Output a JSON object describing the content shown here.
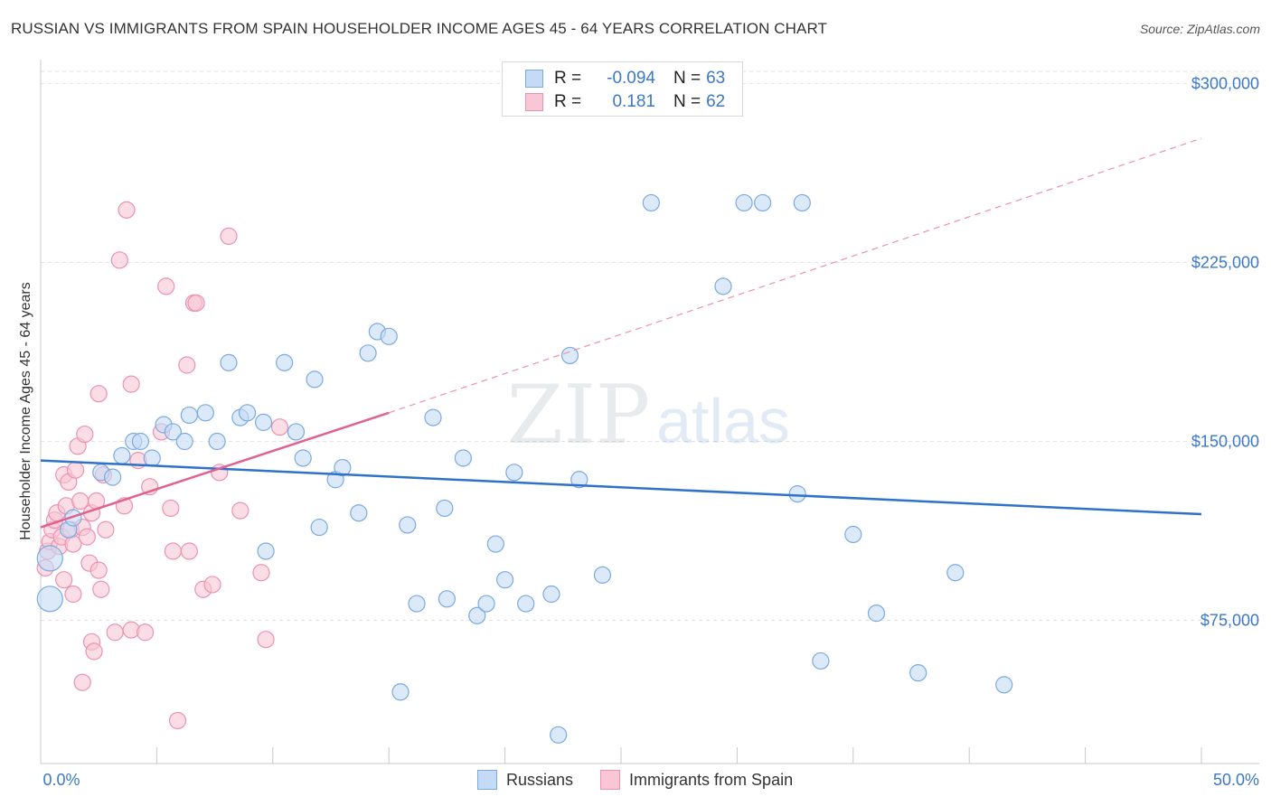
{
  "chart_data": {
    "type": "scatter",
    "title": "RUSSIAN VS IMMIGRANTS FROM SPAIN HOUSEHOLDER INCOME AGES 45 - 64 YEARS CORRELATION CHART",
    "source": "Source: ZipAtlas.com",
    "ylabel": "Householder Income Ages 45 - 64 years",
    "xlabel": "",
    "xlim": [
      0,
      50
    ],
    "ylim": [
      15000,
      310000
    ],
    "x_tick_labels": {
      "left": "0.0%",
      "right": "50.0%"
    },
    "y_ticks": [
      {
        "value": 75000,
        "label": "$75,000"
      },
      {
        "value": 150000,
        "label": "$150,000"
      },
      {
        "value": 225000,
        "label": "$225,000"
      },
      {
        "value": 300000,
        "label": "$300,000"
      }
    ],
    "watermark": {
      "zip": "ZIP",
      "atlas": "atlas"
    },
    "legend": {
      "r_label": "R =",
      "n_label": "N =",
      "entries": [
        {
          "name": "Russians",
          "r": "-0.094",
          "n": "63"
        },
        {
          "name": "Immigrants from Spain",
          "r": "0.181",
          "n": "62"
        }
      ]
    },
    "series": [
      {
        "name": "Russians",
        "color": "#7aaae0",
        "fill": "#c5daf5",
        "trend": {
          "x0": 0,
          "y0": 142000,
          "x1": 50,
          "y1": 119500,
          "dashed_to": null
        },
        "points": [
          [
            0.4,
            101000
          ],
          [
            0.4,
            84000
          ],
          [
            1.2,
            113000
          ],
          [
            1.4,
            118000
          ],
          [
            2.6,
            137000
          ],
          [
            3.1,
            135000
          ],
          [
            3.5,
            144000
          ],
          [
            4.0,
            150000
          ],
          [
            4.3,
            150000
          ],
          [
            4.8,
            143000
          ],
          [
            5.3,
            157000
          ],
          [
            5.7,
            154000
          ],
          [
            6.2,
            150000
          ],
          [
            6.4,
            161000
          ],
          [
            7.1,
            162000
          ],
          [
            7.6,
            150000
          ],
          [
            8.1,
            183000
          ],
          [
            8.6,
            160000
          ],
          [
            8.9,
            162000
          ],
          [
            9.6,
            158000
          ],
          [
            9.7,
            104000
          ],
          [
            10.5,
            183000
          ],
          [
            11.0,
            154000
          ],
          [
            11.3,
            143000
          ],
          [
            11.8,
            176000
          ],
          [
            12.0,
            114000
          ],
          [
            12.7,
            134000
          ],
          [
            13.0,
            139000
          ],
          [
            13.7,
            120000
          ],
          [
            14.1,
            187000
          ],
          [
            14.5,
            196000
          ],
          [
            15.0,
            194000
          ],
          [
            15.5,
            45000
          ],
          [
            15.8,
            115000
          ],
          [
            16.2,
            82000
          ],
          [
            16.9,
            160000
          ],
          [
            17.4,
            122000
          ],
          [
            17.5,
            84000
          ],
          [
            18.2,
            143000
          ],
          [
            18.8,
            77000
          ],
          [
            19.2,
            82000
          ],
          [
            19.6,
            107000
          ],
          [
            20.0,
            92000
          ],
          [
            20.4,
            137000
          ],
          [
            20.9,
            82000
          ],
          [
            22.0,
            86000
          ],
          [
            22.3,
            27000
          ],
          [
            22.8,
            186000
          ],
          [
            23.2,
            134000
          ],
          [
            24.2,
            94000
          ],
          [
            26.3,
            250000
          ],
          [
            29.4,
            215000
          ],
          [
            30.3,
            250000
          ],
          [
            31.1,
            250000
          ],
          [
            32.6,
            128000
          ],
          [
            32.8,
            250000
          ],
          [
            33.6,
            58000
          ],
          [
            35.0,
            111000
          ],
          [
            36.0,
            78000
          ],
          [
            37.8,
            53000
          ],
          [
            39.4,
            95000
          ],
          [
            41.5,
            48000
          ]
        ]
      },
      {
        "name": "Immigrants from Spain",
        "color": "#eb92b0",
        "fill": "#f9c6d6",
        "trend": {
          "x0": 0,
          "y0": 114000,
          "x1": 15,
          "y1": 162000,
          "dashed_to": {
            "x": 50,
            "y": 277000
          }
        },
        "points": [
          [
            0.2,
            97000
          ],
          [
            0.3,
            104000
          ],
          [
            0.4,
            108000
          ],
          [
            0.5,
            113000
          ],
          [
            0.6,
            117000
          ],
          [
            0.7,
            120000
          ],
          [
            0.8,
            106000
          ],
          [
            0.9,
            110000
          ],
          [
            1.0,
            92000
          ],
          [
            1.0,
            136000
          ],
          [
            1.1,
            123000
          ],
          [
            1.2,
            133000
          ],
          [
            1.3,
            113000
          ],
          [
            1.4,
            107000
          ],
          [
            1.4,
            86000
          ],
          [
            1.5,
            138000
          ],
          [
            1.6,
            148000
          ],
          [
            1.7,
            125000
          ],
          [
            1.8,
            114000
          ],
          [
            1.8,
            49000
          ],
          [
            1.9,
            153000
          ],
          [
            2.0,
            110000
          ],
          [
            2.1,
            99000
          ],
          [
            2.2,
            120000
          ],
          [
            2.2,
            66000
          ],
          [
            2.3,
            62000
          ],
          [
            2.4,
            125000
          ],
          [
            2.5,
            96000
          ],
          [
            2.5,
            170000
          ],
          [
            2.6,
            88000
          ],
          [
            2.7,
            136000
          ],
          [
            2.8,
            113000
          ],
          [
            3.2,
            70000
          ],
          [
            3.4,
            226000
          ],
          [
            3.6,
            123000
          ],
          [
            3.7,
            247000
          ],
          [
            3.9,
            174000
          ],
          [
            3.9,
            71000
          ],
          [
            4.2,
            142000
          ],
          [
            4.5,
            70000
          ],
          [
            4.7,
            131000
          ],
          [
            5.2,
            154000
          ],
          [
            5.4,
            215000
          ],
          [
            5.6,
            122000
          ],
          [
            5.7,
            104000
          ],
          [
            5.9,
            33000
          ],
          [
            6.3,
            182000
          ],
          [
            6.4,
            104000
          ],
          [
            6.6,
            208000
          ],
          [
            6.7,
            208000
          ],
          [
            7.0,
            88000
          ],
          [
            7.4,
            90000
          ],
          [
            7.7,
            137000
          ],
          [
            8.1,
            236000
          ],
          [
            8.6,
            121000
          ],
          [
            9.5,
            95000
          ],
          [
            9.7,
            67000
          ],
          [
            10.3,
            156000
          ]
        ]
      }
    ]
  }
}
